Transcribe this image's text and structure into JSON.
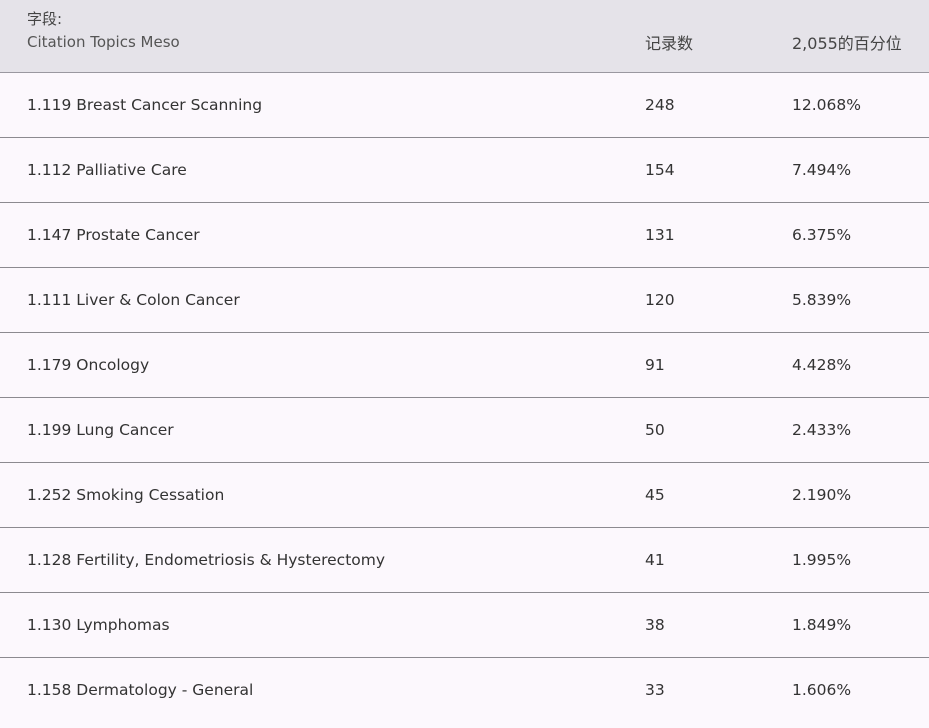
{
  "header": {
    "field_label": "字段:",
    "field_value": "Citation Topics Meso",
    "count_label": "记录数",
    "percent_label": "2,055的百分位"
  },
  "rows": [
    {
      "topic": "1.119 Breast Cancer Scanning",
      "count": "248",
      "percent": "12.068%"
    },
    {
      "topic": "1.112 Palliative Care",
      "count": "154",
      "percent": "7.494%"
    },
    {
      "topic": "1.147 Prostate Cancer",
      "count": "131",
      "percent": "6.375%"
    },
    {
      "topic": "1.111 Liver & Colon Cancer",
      "count": "120",
      "percent": "5.839%"
    },
    {
      "topic": "1.179 Oncology",
      "count": "91",
      "percent": "4.428%"
    },
    {
      "topic": "1.199 Lung Cancer",
      "count": "50",
      "percent": "2.433%"
    },
    {
      "topic": "1.252 Smoking Cessation",
      "count": "45",
      "percent": "2.190%"
    },
    {
      "topic": "1.128 Fertility, Endometriosis & Hysterectomy",
      "count": "41",
      "percent": "1.995%"
    },
    {
      "topic": "1.130 Lymphomas",
      "count": "38",
      "percent": "1.849%"
    },
    {
      "topic": "1.158 Dermatology - General",
      "count": "33",
      "percent": "1.606%"
    }
  ]
}
